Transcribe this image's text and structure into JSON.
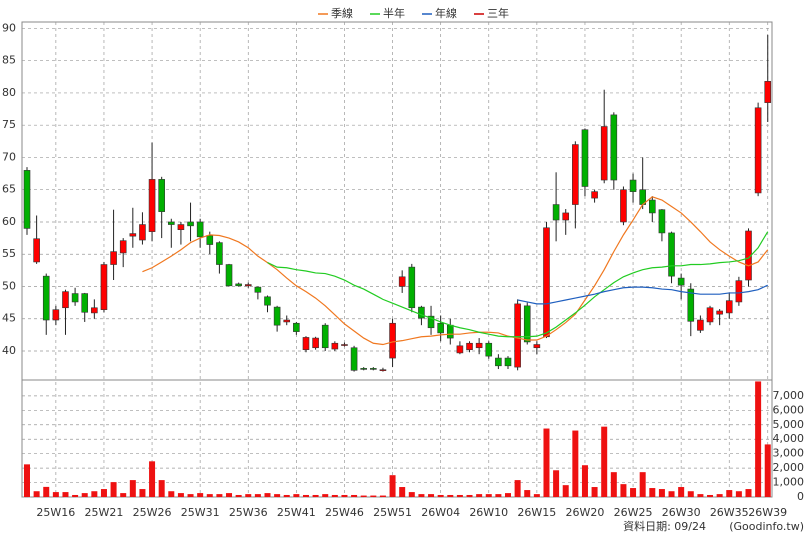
{
  "chart_data": {
    "type": "candlestick",
    "categories": [
      null,
      null,
      null,
      "25W16",
      null,
      null,
      null,
      null,
      "25W21",
      null,
      null,
      null,
      null,
      "25W26",
      null,
      null,
      null,
      null,
      "25W31",
      null,
      null,
      null,
      null,
      "25W36",
      null,
      null,
      null,
      null,
      "25W41",
      null,
      null,
      null,
      null,
      "25W46",
      null,
      null,
      null,
      null,
      "25W51",
      null,
      null,
      null,
      null,
      "26W04",
      null,
      null,
      null,
      null,
      "26W10",
      null,
      null,
      null,
      null,
      "26W15",
      null,
      null,
      null,
      null,
      "26W20",
      null,
      null,
      null,
      null,
      "26W25",
      null,
      null,
      null,
      null,
      "26W30",
      null,
      null,
      null,
      null,
      "26W35",
      null,
      null,
      null,
      "26W39"
    ],
    "open": [
      68,
      53.8,
      51.6,
      44.8,
      46.7,
      48.9,
      48.9,
      45.9,
      46.4,
      53.4,
      55.2,
      57.8,
      57.2,
      58.5,
      66.6,
      60,
      58.8,
      60,
      60,
      57.9,
      56.8,
      53.4,
      50.4,
      50.1,
      49.9,
      48.4,
      46.8,
      44.5,
      44.3,
      40.2,
      40.5,
      44,
      40.3,
      40.9,
      40.5,
      37.3,
      37.3,
      37,
      38.9,
      50,
      53,
      46.8,
      45.4,
      44.3,
      44,
      39.7,
      40.2,
      40.5,
      41.2,
      38.9,
      38.9,
      37.5,
      47,
      40.5,
      42.2,
      62.7,
      60.3,
      62.7,
      74.3,
      63.7,
      66.5,
      76.6,
      60,
      66.5,
      65,
      63.4,
      61.9,
      58.3,
      51.3,
      49.6,
      43.2,
      44.5,
      45.7,
      45.9,
      47.6,
      51,
      64.5,
      78.5
    ],
    "high": [
      68.5,
      61,
      52,
      47,
      49.5,
      49.8,
      49,
      48,
      53.8,
      61.9,
      57.5,
      62.2,
      61.5,
      72.3,
      67,
      60.5,
      60,
      63,
      60.5,
      58.5,
      57,
      53.5,
      50.6,
      50.6,
      50,
      48.6,
      47,
      45.5,
      44.5,
      42.3,
      42.2,
      44.3,
      41.5,
      41.3,
      40.8,
      37.5,
      37.5,
      37.4,
      45,
      52.5,
      53.5,
      47,
      47,
      45.5,
      45,
      41.5,
      41.5,
      42,
      41.5,
      39.5,
      39.2,
      48,
      47.5,
      41.5,
      60,
      67.7,
      62,
      72.5,
      74.5,
      65,
      80.5,
      77,
      65.5,
      67.5,
      70,
      64,
      62,
      58.5,
      52,
      50.5,
      45.5,
      47,
      46.5,
      49,
      51.5,
      59,
      78.5,
      89
    ],
    "low": [
      58,
      53.5,
      42.5,
      44,
      42.5,
      47,
      44.5,
      45,
      46,
      51,
      53,
      56,
      56.5,
      57,
      57.5,
      56,
      56.5,
      57,
      56,
      55,
      52,
      50,
      50,
      49.8,
      48,
      46,
      43,
      44,
      42.5,
      39.8,
      40.2,
      40,
      40,
      40.7,
      36.8,
      37,
      37,
      36.8,
      37.5,
      49,
      46,
      44,
      42.5,
      41.5,
      41,
      39.5,
      39.8,
      39.5,
      38.8,
      37.2,
      37.2,
      37,
      41,
      39.5,
      42,
      57,
      58,
      59,
      64,
      63,
      66,
      65,
      59.5,
      63,
      62,
      60,
      57,
      50.5,
      48,
      42.3,
      42.8,
      44,
      44,
      45,
      47,
      50,
      64,
      75.5
    ],
    "close": [
      59,
      57.4,
      44.8,
      46.4,
      49.2,
      47.6,
      46,
      46.7,
      53.4,
      55.4,
      57.1,
      58.2,
      59.6,
      66.6,
      61.6,
      59.6,
      59.6,
      59.4,
      57.7,
      56.5,
      53.4,
      50.1,
      50.1,
      50.3,
      49.1,
      47.1,
      44,
      44.8,
      43,
      42.1,
      42,
      40.5,
      41.2,
      41,
      37,
      37.2,
      37.2,
      37.1,
      44.3,
      51.5,
      46.7,
      45.1,
      43.6,
      42.8,
      42,
      40.8,
      41.2,
      41.2,
      39.2,
      37.7,
      37.7,
      47.3,
      41.4,
      41,
      59.1,
      60.3,
      61.4,
      72,
      65.5,
      64.7,
      74.8,
      66.5,
      65,
      64.7,
      62.7,
      61.4,
      58.3,
      51.6,
      50.2,
      44.6,
      44.8,
      46.7,
      46.2,
      47.8,
      50.9,
      58.6,
      77.7,
      81.8
    ],
    "up_color": "#ff0000",
    "down_color": "#00b000",
    "ylim": [
      35.5,
      91
    ],
    "yticks": [
      40,
      45,
      50,
      55,
      60,
      65,
      70,
      75,
      80,
      85,
      90
    ],
    "grid": true,
    "series": [
      {
        "name": "季線",
        "color": "#f07820",
        "values": [
          null,
          null,
          null,
          null,
          null,
          null,
          null,
          null,
          null,
          null,
          null,
          null,
          52.3,
          52.9,
          53.8,
          54.7,
          55.7,
          56.8,
          57.5,
          58,
          57.9,
          57.5,
          56.9,
          56,
          54.7,
          53.7,
          52.6,
          51.3,
          50.1,
          49.2,
          48.2,
          47,
          45.6,
          44.2,
          43.1,
          42,
          41.2,
          41,
          41.4,
          41.6,
          41.9,
          42.2,
          42.3,
          42.5,
          42.6,
          42.6,
          42.8,
          42.9,
          42.9,
          42.8,
          42.3,
          42,
          41.7,
          41.7,
          42.3,
          43.3,
          44.4,
          45.7,
          47.9,
          50.1,
          52.6,
          55.4,
          58,
          60.3,
          62.7,
          63.9,
          63.4,
          62.4,
          61.4,
          60,
          58.5,
          56.9,
          55.7,
          54.7,
          53.8,
          53.2,
          53.8,
          55.7
        ]
      },
      {
        "name": "半年",
        "color": "#22cc22",
        "values": [
          null,
          null,
          null,
          null,
          null,
          null,
          null,
          null,
          null,
          null,
          null,
          null,
          null,
          null,
          null,
          null,
          null,
          null,
          null,
          null,
          null,
          null,
          null,
          null,
          null,
          53.7,
          53,
          52.9,
          52.6,
          52.4,
          52.1,
          52,
          51.6,
          51,
          50.2,
          49.6,
          48.8,
          48,
          47.4,
          46.8,
          46.2,
          45.6,
          45.1,
          44.5,
          44,
          43.6,
          43.3,
          42.9,
          42.6,
          42.3,
          42.2,
          42.2,
          42.2,
          42.3,
          42.8,
          43.7,
          44.8,
          45.9,
          47.1,
          48.4,
          49.5,
          50.6,
          51.5,
          52.1,
          52.6,
          52.9,
          53,
          53.2,
          53.2,
          53.4,
          53.4,
          53.5,
          53.7,
          53.8,
          54,
          54.4,
          56,
          58.5
        ]
      },
      {
        "name": "年線",
        "color": "#1f5fbf",
        "values": [
          null,
          null,
          null,
          null,
          null,
          null,
          null,
          null,
          null,
          null,
          null,
          null,
          null,
          null,
          null,
          null,
          null,
          null,
          null,
          null,
          null,
          null,
          null,
          null,
          null,
          null,
          null,
          null,
          null,
          null,
          null,
          null,
          null,
          null,
          null,
          null,
          null,
          null,
          null,
          null,
          null,
          null,
          null,
          null,
          null,
          null,
          null,
          null,
          null,
          null,
          null,
          47.9,
          47.6,
          47.3,
          47.3,
          47.6,
          47.9,
          48.2,
          48.5,
          48.8,
          49.2,
          49.5,
          49.8,
          49.9,
          49.9,
          49.8,
          49.6,
          49.5,
          49.2,
          49,
          48.8,
          48.8,
          48.8,
          49,
          49,
          49.2,
          49.5,
          50.2
        ]
      },
      {
        "name": "三年",
        "color": "#cc0000"
      }
    ],
    "volume": {
      "color": "#ee1111",
      "values": [
        2260,
        400,
        700,
        340,
        340,
        140,
        270,
        400,
        550,
        1030,
        270,
        1170,
        550,
        2470,
        1170,
        400,
        270,
        200,
        270,
        200,
        200,
        270,
        140,
        200,
        200,
        270,
        200,
        140,
        200,
        140,
        140,
        200,
        140,
        140,
        140,
        100,
        100,
        100,
        1510,
        690,
        340,
        200,
        200,
        140,
        140,
        140,
        140,
        200,
        200,
        200,
        270,
        1170,
        480,
        200,
        4740,
        1850,
        820,
        4600,
        2200,
        690,
        4870,
        1720,
        890,
        620,
        1720,
        620,
        550,
        400,
        690,
        400,
        200,
        140,
        200,
        480,
        400,
        550,
        8000,
        3640
      ],
      "ylim": [
        0,
        8100
      ],
      "yticks": [
        0,
        {
          "value": 1000,
          "label": "1,000"
        },
        {
          "value": 2000,
          "label": "2,000"
        },
        {
          "value": 3000,
          "label": "3,000"
        },
        {
          "value": 4000,
          "label": "4,000"
        },
        {
          "value": 5000,
          "label": "5,000"
        },
        {
          "value": 6000,
          "label": "6,000"
        },
        {
          "value": 7000,
          "label": "7,000"
        }
      ]
    },
    "footnote": "資料日期: 09/24",
    "source": "(Goodinfo.tw)"
  }
}
